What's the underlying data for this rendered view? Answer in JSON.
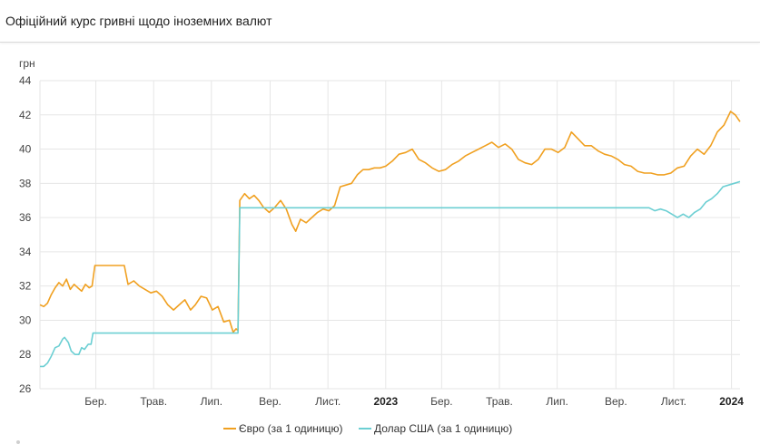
{
  "page": {
    "title": "Офіційний курс гривні щодо іноземних валют"
  },
  "chart_data": {
    "type": "line",
    "ylabel": "грн",
    "ylim": [
      26,
      44
    ],
    "yticks": [
      26,
      28,
      30,
      32,
      34,
      36,
      38,
      40,
      42,
      44
    ],
    "grid": true,
    "legend_position": "bottom",
    "xrange": [
      "2022-01-01",
      "2024-01-10"
    ],
    "xticks": [
      {
        "label": "Бер.",
        "date": "2022-03-01",
        "bold": false
      },
      {
        "label": "Трав.",
        "date": "2022-05-01",
        "bold": false
      },
      {
        "label": "Лип.",
        "date": "2022-07-01",
        "bold": false
      },
      {
        "label": "Вер.",
        "date": "2022-09-01",
        "bold": false
      },
      {
        "label": "Лист.",
        "date": "2022-11-01",
        "bold": false
      },
      {
        "label": "2023",
        "date": "2023-01-01",
        "bold": true
      },
      {
        "label": "Бер.",
        "date": "2023-03-01",
        "bold": false
      },
      {
        "label": "Трав.",
        "date": "2023-05-01",
        "bold": false
      },
      {
        "label": "Лип.",
        "date": "2023-07-01",
        "bold": false
      },
      {
        "label": "Вер.",
        "date": "2023-09-01",
        "bold": false
      },
      {
        "label": "Лист.",
        "date": "2023-11-01",
        "bold": false
      },
      {
        "label": "2024",
        "date": "2024-01-01",
        "bold": true
      }
    ],
    "series": [
      {
        "name": "Євро (за 1 одиницю)",
        "color": "#f0a020",
        "points": [
          [
            "2022-01-01",
            30.9
          ],
          [
            "2022-01-05",
            30.8
          ],
          [
            "2022-01-09",
            31.0
          ],
          [
            "2022-01-13",
            31.5
          ],
          [
            "2022-01-17",
            31.9
          ],
          [
            "2022-01-21",
            32.2
          ],
          [
            "2022-01-25",
            32.0
          ],
          [
            "2022-01-29",
            32.4
          ],
          [
            "2022-02-02",
            31.8
          ],
          [
            "2022-02-06",
            32.1
          ],
          [
            "2022-02-10",
            31.9
          ],
          [
            "2022-02-14",
            31.7
          ],
          [
            "2022-02-18",
            32.1
          ],
          [
            "2022-02-22",
            31.9
          ],
          [
            "2022-02-25",
            32.0
          ],
          [
            "2022-02-28",
            33.2
          ],
          [
            "2022-03-10",
            33.2
          ],
          [
            "2022-03-20",
            33.2
          ],
          [
            "2022-03-31",
            33.2
          ],
          [
            "2022-04-04",
            32.1
          ],
          [
            "2022-04-10",
            32.3
          ],
          [
            "2022-04-16",
            32.0
          ],
          [
            "2022-04-22",
            31.8
          ],
          [
            "2022-04-28",
            31.6
          ],
          [
            "2022-05-04",
            31.7
          ],
          [
            "2022-05-10",
            31.4
          ],
          [
            "2022-05-16",
            30.9
          ],
          [
            "2022-05-22",
            30.6
          ],
          [
            "2022-05-28",
            30.9
          ],
          [
            "2022-06-03",
            31.2
          ],
          [
            "2022-06-09",
            30.6
          ],
          [
            "2022-06-14",
            30.9
          ],
          [
            "2022-06-20",
            31.4
          ],
          [
            "2022-06-26",
            31.3
          ],
          [
            "2022-07-02",
            30.6
          ],
          [
            "2022-07-08",
            30.8
          ],
          [
            "2022-07-14",
            29.9
          ],
          [
            "2022-07-20",
            30.0
          ],
          [
            "2022-07-24",
            29.3
          ],
          [
            "2022-07-27",
            29.5
          ],
          [
            "2022-07-29",
            29.4
          ],
          [
            "2022-07-31",
            37.0
          ],
          [
            "2022-08-05",
            37.4
          ],
          [
            "2022-08-10",
            37.1
          ],
          [
            "2022-08-15",
            37.3
          ],
          [
            "2022-08-20",
            37.0
          ],
          [
            "2022-08-25",
            36.6
          ],
          [
            "2022-08-31",
            36.3
          ],
          [
            "2022-09-06",
            36.6
          ],
          [
            "2022-09-12",
            37.0
          ],
          [
            "2022-09-18",
            36.5
          ],
          [
            "2022-09-24",
            35.6
          ],
          [
            "2022-09-28",
            35.2
          ],
          [
            "2022-10-03",
            35.9
          ],
          [
            "2022-10-09",
            35.7
          ],
          [
            "2022-10-15",
            36.0
          ],
          [
            "2022-10-21",
            36.3
          ],
          [
            "2022-10-27",
            36.5
          ],
          [
            "2022-11-02",
            36.4
          ],
          [
            "2022-11-08",
            36.7
          ],
          [
            "2022-11-14",
            37.8
          ],
          [
            "2022-11-20",
            37.9
          ],
          [
            "2022-11-26",
            38.0
          ],
          [
            "2022-12-02",
            38.5
          ],
          [
            "2022-12-08",
            38.8
          ],
          [
            "2022-12-14",
            38.8
          ],
          [
            "2022-12-20",
            38.9
          ],
          [
            "2022-12-26",
            38.9
          ],
          [
            "2023-01-01",
            39.0
          ],
          [
            "2023-01-08",
            39.3
          ],
          [
            "2023-01-15",
            39.7
          ],
          [
            "2023-01-22",
            39.8
          ],
          [
            "2023-01-29",
            40.0
          ],
          [
            "2023-02-05",
            39.4
          ],
          [
            "2023-02-12",
            39.2
          ],
          [
            "2023-02-19",
            38.9
          ],
          [
            "2023-02-26",
            38.7
          ],
          [
            "2023-03-05",
            38.8
          ],
          [
            "2023-03-12",
            39.1
          ],
          [
            "2023-03-19",
            39.3
          ],
          [
            "2023-03-26",
            39.6
          ],
          [
            "2023-04-02",
            39.8
          ],
          [
            "2023-04-09",
            40.0
          ],
          [
            "2023-04-16",
            40.2
          ],
          [
            "2023-04-23",
            40.4
          ],
          [
            "2023-04-30",
            40.1
          ],
          [
            "2023-05-07",
            40.3
          ],
          [
            "2023-05-14",
            40.0
          ],
          [
            "2023-05-21",
            39.4
          ],
          [
            "2023-05-28",
            39.2
          ],
          [
            "2023-06-04",
            39.1
          ],
          [
            "2023-06-11",
            39.4
          ],
          [
            "2023-06-18",
            40.0
          ],
          [
            "2023-06-25",
            40.0
          ],
          [
            "2023-07-02",
            39.8
          ],
          [
            "2023-07-09",
            40.1
          ],
          [
            "2023-07-16",
            41.0
          ],
          [
            "2023-07-23",
            40.6
          ],
          [
            "2023-07-30",
            40.2
          ],
          [
            "2023-08-06",
            40.2
          ],
          [
            "2023-08-13",
            39.9
          ],
          [
            "2023-08-20",
            39.7
          ],
          [
            "2023-08-27",
            39.6
          ],
          [
            "2023-09-03",
            39.4
          ],
          [
            "2023-09-10",
            39.1
          ],
          [
            "2023-09-17",
            39.0
          ],
          [
            "2023-09-24",
            38.7
          ],
          [
            "2023-10-01",
            38.6
          ],
          [
            "2023-10-08",
            38.6
          ],
          [
            "2023-10-15",
            38.5
          ],
          [
            "2023-10-22",
            38.5
          ],
          [
            "2023-10-29",
            38.6
          ],
          [
            "2023-11-05",
            38.9
          ],
          [
            "2023-11-12",
            39.0
          ],
          [
            "2023-11-19",
            39.6
          ],
          [
            "2023-11-26",
            40.0
          ],
          [
            "2023-12-03",
            39.7
          ],
          [
            "2023-12-10",
            40.2
          ],
          [
            "2023-12-17",
            41.0
          ],
          [
            "2023-12-24",
            41.4
          ],
          [
            "2023-12-31",
            42.2
          ],
          [
            "2024-01-05",
            42.0
          ],
          [
            "2024-01-10",
            41.6
          ]
        ]
      },
      {
        "name": "Долар США (за 1 одиницю)",
        "color": "#6ccfd3",
        "points": [
          [
            "2022-01-01",
            27.3
          ],
          [
            "2022-01-05",
            27.3
          ],
          [
            "2022-01-09",
            27.5
          ],
          [
            "2022-01-13",
            27.9
          ],
          [
            "2022-01-17",
            28.4
          ],
          [
            "2022-01-21",
            28.5
          ],
          [
            "2022-01-25",
            28.9
          ],
          [
            "2022-01-27",
            29.0
          ],
          [
            "2022-01-31",
            28.7
          ],
          [
            "2022-02-03",
            28.2
          ],
          [
            "2022-02-07",
            28.0
          ],
          [
            "2022-02-11",
            28.0
          ],
          [
            "2022-02-14",
            28.4
          ],
          [
            "2022-02-17",
            28.3
          ],
          [
            "2022-02-21",
            28.6
          ],
          [
            "2022-02-24",
            28.6
          ],
          [
            "2022-02-26",
            29.25
          ],
          [
            "2022-04-15",
            29.25
          ],
          [
            "2022-06-01",
            29.25
          ],
          [
            "2022-07-20",
            29.25
          ],
          [
            "2022-07-29",
            29.25
          ],
          [
            "2022-07-31",
            36.57
          ],
          [
            "2022-09-15",
            36.57
          ],
          [
            "2022-11-15",
            36.57
          ],
          [
            "2023-03-01",
            36.57
          ],
          [
            "2023-07-01",
            36.57
          ],
          [
            "2023-09-15",
            36.57
          ],
          [
            "2023-10-06",
            36.57
          ],
          [
            "2023-10-12",
            36.4
          ],
          [
            "2023-10-18",
            36.5
          ],
          [
            "2023-10-24",
            36.4
          ],
          [
            "2023-10-30",
            36.2
          ],
          [
            "2023-11-05",
            36.0
          ],
          [
            "2023-11-11",
            36.2
          ],
          [
            "2023-11-17",
            36.0
          ],
          [
            "2023-11-23",
            36.3
          ],
          [
            "2023-11-29",
            36.5
          ],
          [
            "2023-12-05",
            36.9
          ],
          [
            "2023-12-11",
            37.1
          ],
          [
            "2023-12-17",
            37.4
          ],
          [
            "2023-12-23",
            37.8
          ],
          [
            "2023-12-29",
            37.9
          ],
          [
            "2024-01-04",
            38.0
          ],
          [
            "2024-01-10",
            38.1
          ]
        ]
      }
    ]
  }
}
